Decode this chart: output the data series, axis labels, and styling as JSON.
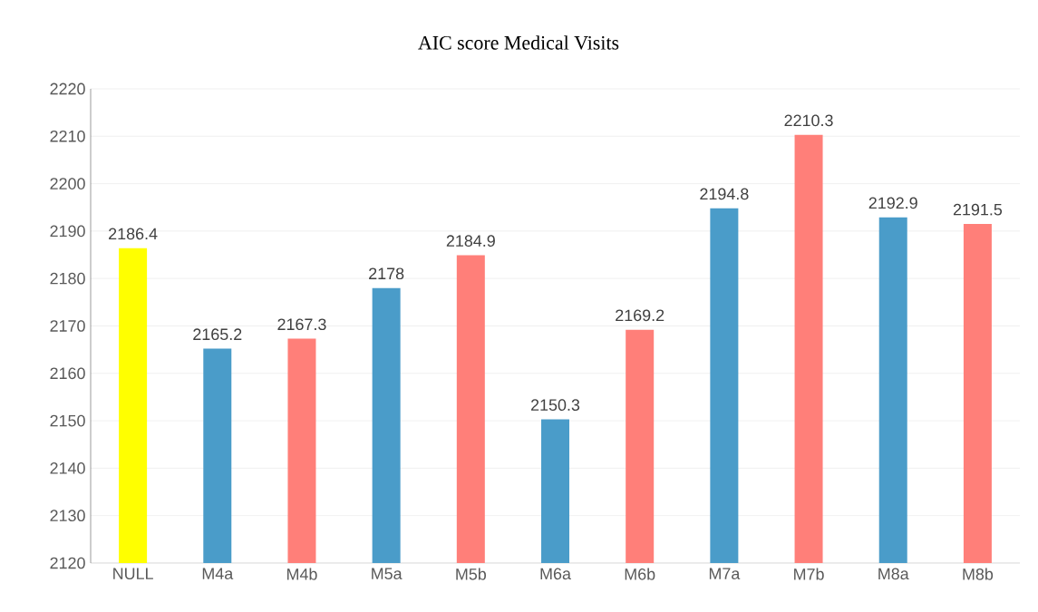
{
  "chart_data": {
    "type": "bar",
    "title": "AIC score Medical Visits",
    "categories": [
      "NULL",
      "M4a",
      "M4b",
      "M5a",
      "M5b",
      "M6a",
      "M6b",
      "M7a",
      "M7b",
      "M8a",
      "M8b"
    ],
    "values": [
      2186.4,
      2165.2,
      2167.3,
      2178,
      2184.9,
      2150.3,
      2169.2,
      2194.8,
      2210.3,
      2192.9,
      2191.5
    ],
    "colors": [
      "#ffff00",
      "#4a9cc9",
      "#ff7f79",
      "#4a9cc9",
      "#ff7f79",
      "#4a9cc9",
      "#ff7f79",
      "#4a9cc9",
      "#ff7f79",
      "#4a9cc9",
      "#ff7f79"
    ],
    "ylim": [
      2120,
      2220
    ],
    "yticks": [
      2120,
      2130,
      2140,
      2150,
      2160,
      2170,
      2180,
      2190,
      2200,
      2210,
      2220
    ],
    "grid": "y",
    "data_labels": true
  }
}
